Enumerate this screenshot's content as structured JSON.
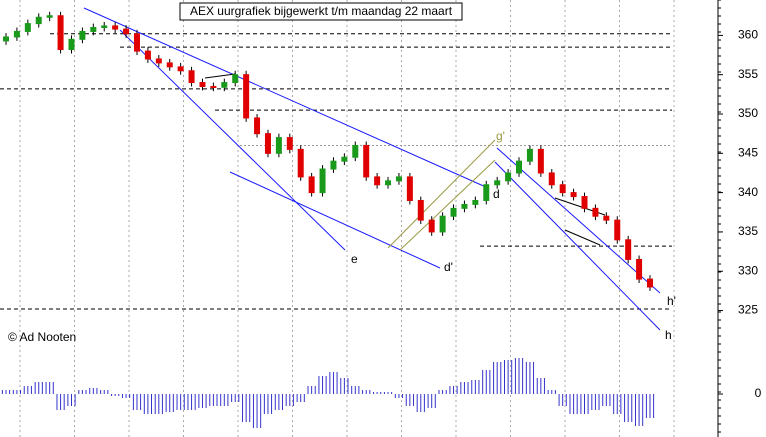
{
  "chart_data": {
    "type": "candlestick",
    "title": "AEX uurgrafiek bijgewerkt t/m maandag 22 maart",
    "credit": "© Ad Nooten",
    "open": [
      359.3,
      359.8,
      360.5,
      361.5,
      362.3,
      362.5,
      358.2,
      359.5,
      360.5,
      361,
      361.2,
      360.8,
      360.2,
      358,
      357,
      356.5,
      356,
      355.5,
      354,
      353.5,
      353.4,
      354,
      355,
      349.5,
      347.5,
      345,
      347,
      345.5,
      342,
      340,
      343,
      344,
      344.5,
      346,
      342,
      341,
      341.5,
      342,
      339,
      336.5,
      335,
      337,
      338,
      338.5,
      339,
      341,
      341.5,
      342.5,
      344,
      345.5,
      342.5,
      341,
      340,
      339.5,
      338,
      337,
      336.5,
      334,
      331.5,
      329
    ],
    "high": [
      360.3,
      361,
      362,
      362.8,
      363,
      363,
      360,
      361,
      361.5,
      361.7,
      361.7,
      361.3,
      360.7,
      358.5,
      357.5,
      357,
      356.5,
      356,
      354.5,
      354,
      354.5,
      355.5,
      355.5,
      350,
      348,
      347.5,
      347.5,
      346,
      342.5,
      343.5,
      344.5,
      345,
      346.5,
      346.5,
      342.5,
      342,
      342.5,
      342.5,
      339.5,
      337,
      337.5,
      338.5,
      339,
      339.5,
      341.5,
      342,
      343,
      344.5,
      346,
      346,
      343,
      341.5,
      340.5,
      340,
      338.5,
      337.5,
      337,
      334.5,
      332,
      329.5
    ],
    "low": [
      358.8,
      359.3,
      360,
      361,
      361.8,
      357.7,
      357.7,
      359,
      360,
      360.5,
      360.3,
      359.7,
      357.5,
      356.5,
      356,
      355.5,
      355,
      353.5,
      353,
      352.9,
      352.9,
      353.5,
      349,
      347,
      344.5,
      344.5,
      345,
      341.5,
      339.5,
      339.5,
      342.5,
      343.5,
      344,
      341.5,
      340.5,
      340.5,
      341,
      338.5,
      336,
      334.5,
      334.5,
      336.5,
      337.5,
      338,
      338.5,
      340.5,
      341,
      342,
      343.5,
      342,
      340.5,
      339.5,
      339,
      337.5,
      336.5,
      336,
      333.5,
      331,
      328.5,
      327.5
    ],
    "close": [
      359.8,
      360.5,
      361.5,
      362.3,
      362.5,
      358.2,
      359.5,
      360.5,
      361,
      361.2,
      360.8,
      360.2,
      358,
      357,
      356.5,
      356,
      355.5,
      354,
      353.5,
      353.4,
      354,
      355,
      349.5,
      347.5,
      345,
      347,
      345.5,
      342,
      340,
      343,
      344,
      344.5,
      346,
      342,
      341,
      341.5,
      342,
      339,
      336.5,
      335,
      337,
      338,
      338.5,
      339,
      341,
      341.5,
      342.5,
      344,
      345.5,
      342.5,
      341,
      340,
      339.5,
      338,
      337,
      336.5,
      334,
      331.5,
      329,
      328
    ],
    "up_color": "#1a9a1a",
    "down_color": "#e00000",
    "ylim": [
      321,
      364.5
    ],
    "yticks": [
      325,
      330,
      335,
      340,
      345,
      350,
      355,
      360
    ],
    "levels": [
      360.2,
      358.5,
      353.2,
      350.5,
      346,
      333.2,
      325.2
    ],
    "annotations": [
      "e",
      "d",
      "d'",
      "g'",
      "h",
      "h'"
    ],
    "indicator": {
      "values": [
        0.1,
        0.1,
        0.2,
        0.3,
        0.3,
        -0.4,
        -0.3,
        0.1,
        0.15,
        0.1,
        -0.05,
        -0.1,
        -0.4,
        -0.5,
        -0.5,
        -0.45,
        -0.4,
        -0.4,
        -0.35,
        -0.3,
        -0.3,
        -0.2,
        -0.7,
        -0.85,
        -0.5,
        -0.4,
        -0.3,
        -0.2,
        0.2,
        0.45,
        0.55,
        0.4,
        0.2,
        0.1,
        0.05,
        0.05,
        -0.1,
        -0.3,
        -0.45,
        -0.35,
        0.1,
        0.2,
        0.3,
        0.35,
        0.6,
        0.8,
        0.85,
        0.9,
        0.8,
        0.4,
        0.1,
        -0.3,
        -0.5,
        -0.5,
        -0.4,
        -0.3,
        -0.5,
        -0.7,
        -0.8,
        -0.6
      ],
      "color": "#3333cc",
      "ylim": [
        -1,
        1
      ],
      "yticks": [
        0
      ]
    }
  }
}
